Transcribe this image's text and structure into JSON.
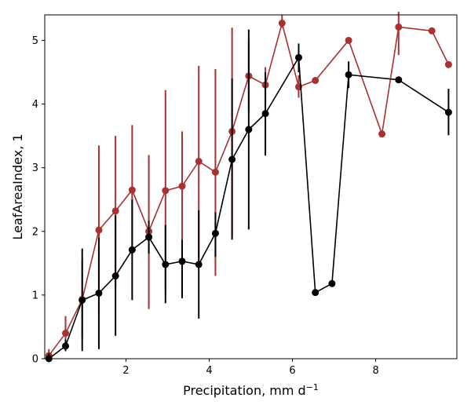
{
  "chart_data": {
    "type": "line",
    "title": "",
    "xlabel": "Precipitation,  mm d",
    "xlabel_superscript": "−1",
    "ylabel": "LeafAreaIndex,  1",
    "xlim": [
      0.05,
      9.95
    ],
    "ylim": [
      0,
      5.4
    ],
    "x_ticks": [
      2,
      4,
      6,
      8
    ],
    "y_ticks": [
      0,
      1,
      2,
      3,
      4,
      5
    ],
    "grid": false,
    "legend": "none",
    "series": [
      {
        "color": "#a83232",
        "points": [
          {
            "x": 0.15,
            "y": 0.05,
            "lo": 0.0,
            "hi": 0.15
          },
          {
            "x": 0.55,
            "y": 0.4,
            "lo": 0.12,
            "hi": 0.67
          },
          {
            "x": 0.95,
            "y": 0.93,
            "lo": 0.33,
            "hi": 1.55
          },
          {
            "x": 1.35,
            "y": 2.02,
            "lo": 0.7,
            "hi": 3.35
          },
          {
            "x": 1.75,
            "y": 2.32,
            "lo": 1.12,
            "hi": 3.5
          },
          {
            "x": 2.15,
            "y": 2.65,
            "lo": 1.63,
            "hi": 3.67
          },
          {
            "x": 2.55,
            "y": 2.0,
            "lo": 0.78,
            "hi": 3.2
          },
          {
            "x": 2.95,
            "y": 2.64,
            "lo": 1.05,
            "hi": 4.22
          },
          {
            "x": 3.35,
            "y": 2.71,
            "lo": 1.87,
            "hi": 3.57
          },
          {
            "x": 3.75,
            "y": 3.1,
            "lo": 1.6,
            "hi": 4.6
          },
          {
            "x": 4.15,
            "y": 2.93,
            "lo": 1.3,
            "hi": 4.55
          },
          {
            "x": 4.55,
            "y": 3.57,
            "lo": 1.93,
            "hi": 5.2
          },
          {
            "x": 4.95,
            "y": 4.44,
            "lo": 3.9,
            "hi": 4.98
          },
          {
            "x": 5.35,
            "y": 4.3,
            "lo": 4.0,
            "hi": 4.58
          },
          {
            "x": 5.75,
            "y": 5.27,
            "lo": 5.2,
            "hi": 5.4
          },
          {
            "x": 6.15,
            "y": 4.27,
            "lo": 4.1,
            "hi": 4.45
          },
          {
            "x": 6.55,
            "y": 4.37,
            "lo": 4.37,
            "hi": 4.37
          },
          {
            "x": 7.35,
            "y": 5.0,
            "lo": 5.0,
            "hi": 5.0
          },
          {
            "x": 8.15,
            "y": 3.53,
            "lo": 3.53,
            "hi": 3.53
          },
          {
            "x": 8.55,
            "y": 5.21,
            "lo": 4.77,
            "hi": 5.45
          },
          {
            "x": 9.35,
            "y": 5.15,
            "lo": 5.15,
            "hi": 5.15
          },
          {
            "x": 9.75,
            "y": 4.62,
            "lo": 4.62,
            "hi": 4.62
          }
        ]
      },
      {
        "color": "#000000",
        "points": [
          {
            "x": 0.15,
            "y": 0.0,
            "lo": 0.0,
            "hi": 0.08
          },
          {
            "x": 0.55,
            "y": 0.2,
            "lo": 0.12,
            "hi": 0.3
          },
          {
            "x": 0.95,
            "y": 0.92,
            "lo": 0.12,
            "hi": 1.73
          },
          {
            "x": 1.35,
            "y": 1.03,
            "lo": 0.15,
            "hi": 1.9
          },
          {
            "x": 1.75,
            "y": 1.3,
            "lo": 0.36,
            "hi": 2.25
          },
          {
            "x": 2.15,
            "y": 1.71,
            "lo": 0.92,
            "hi": 2.5
          },
          {
            "x": 2.55,
            "y": 1.91,
            "lo": 1.65,
            "hi": 2.17
          },
          {
            "x": 2.95,
            "y": 1.48,
            "lo": 0.87,
            "hi": 2.1
          },
          {
            "x": 3.35,
            "y": 1.53,
            "lo": 0.95,
            "hi": 1.87
          },
          {
            "x": 3.75,
            "y": 1.48,
            "lo": 0.63,
            "hi": 2.33
          },
          {
            "x": 4.15,
            "y": 1.97,
            "lo": 1.6,
            "hi": 2.3
          },
          {
            "x": 4.55,
            "y": 3.13,
            "lo": 1.87,
            "hi": 4.4
          },
          {
            "x": 4.95,
            "y": 3.6,
            "lo": 2.03,
            "hi": 5.17
          },
          {
            "x": 5.35,
            "y": 3.85,
            "lo": 3.19,
            "hi": 4.5
          },
          {
            "x": 6.15,
            "y": 4.73,
            "lo": 4.5,
            "hi": 4.95
          },
          {
            "x": 6.55,
            "y": 1.04,
            "lo": 1.04,
            "hi": 1.04
          },
          {
            "x": 6.95,
            "y": 1.18,
            "lo": 1.18,
            "hi": 1.18
          },
          {
            "x": 7.35,
            "y": 4.46,
            "lo": 4.25,
            "hi": 4.67
          },
          {
            "x": 8.55,
            "y": 4.38,
            "lo": 4.38,
            "hi": 4.38
          },
          {
            "x": 9.75,
            "y": 3.87,
            "lo": 3.51,
            "hi": 4.24
          }
        ]
      }
    ]
  }
}
